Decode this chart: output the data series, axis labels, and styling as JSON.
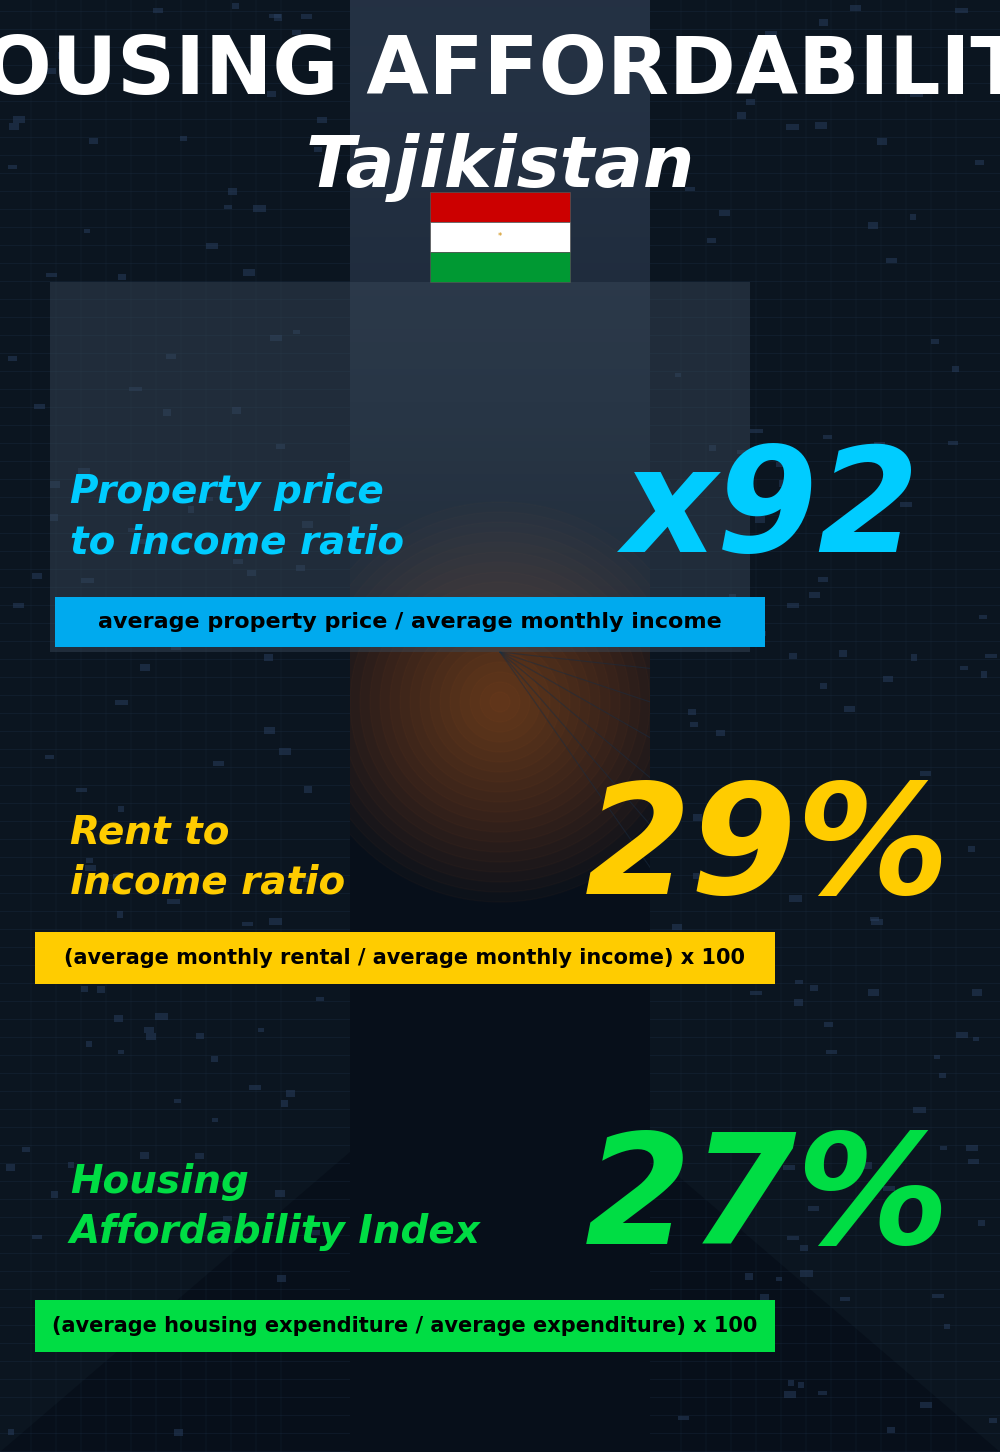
{
  "title_line1": "HOUSING AFFORDABILITY",
  "title_line2": "Tajikistan",
  "bg_color": "#08111e",
  "section1_label": "Property price\nto income ratio",
  "section1_value": "x92",
  "section1_label_color": "#00ccff",
  "section1_value_color": "#00ccff",
  "section1_formula": "average property price / average monthly income",
  "section1_formula_bg": "#00aaee",
  "section2_label": "Rent to\nincome ratio",
  "section2_value": "29%",
  "section2_label_color": "#ffcc00",
  "section2_value_color": "#ffcc00",
  "section2_formula": "(average monthly rental / average monthly income) x 100",
  "section2_formula_bg": "#ffcc00",
  "section3_label": "Housing\nAffordability Index",
  "section3_value": "27%",
  "section3_label_color": "#00dd44",
  "section3_value_color": "#00dd44",
  "section3_formula": "(average housing expenditure / average expenditure) x 100",
  "section3_formula_bg": "#00dd44",
  "title_color": "#ffffff",
  "title2_color": "#ffffff",
  "formula_text_color": "#000000",
  "flag_red": "#CC0000",
  "flag_white": "#FFFFFF",
  "flag_green": "#009933"
}
